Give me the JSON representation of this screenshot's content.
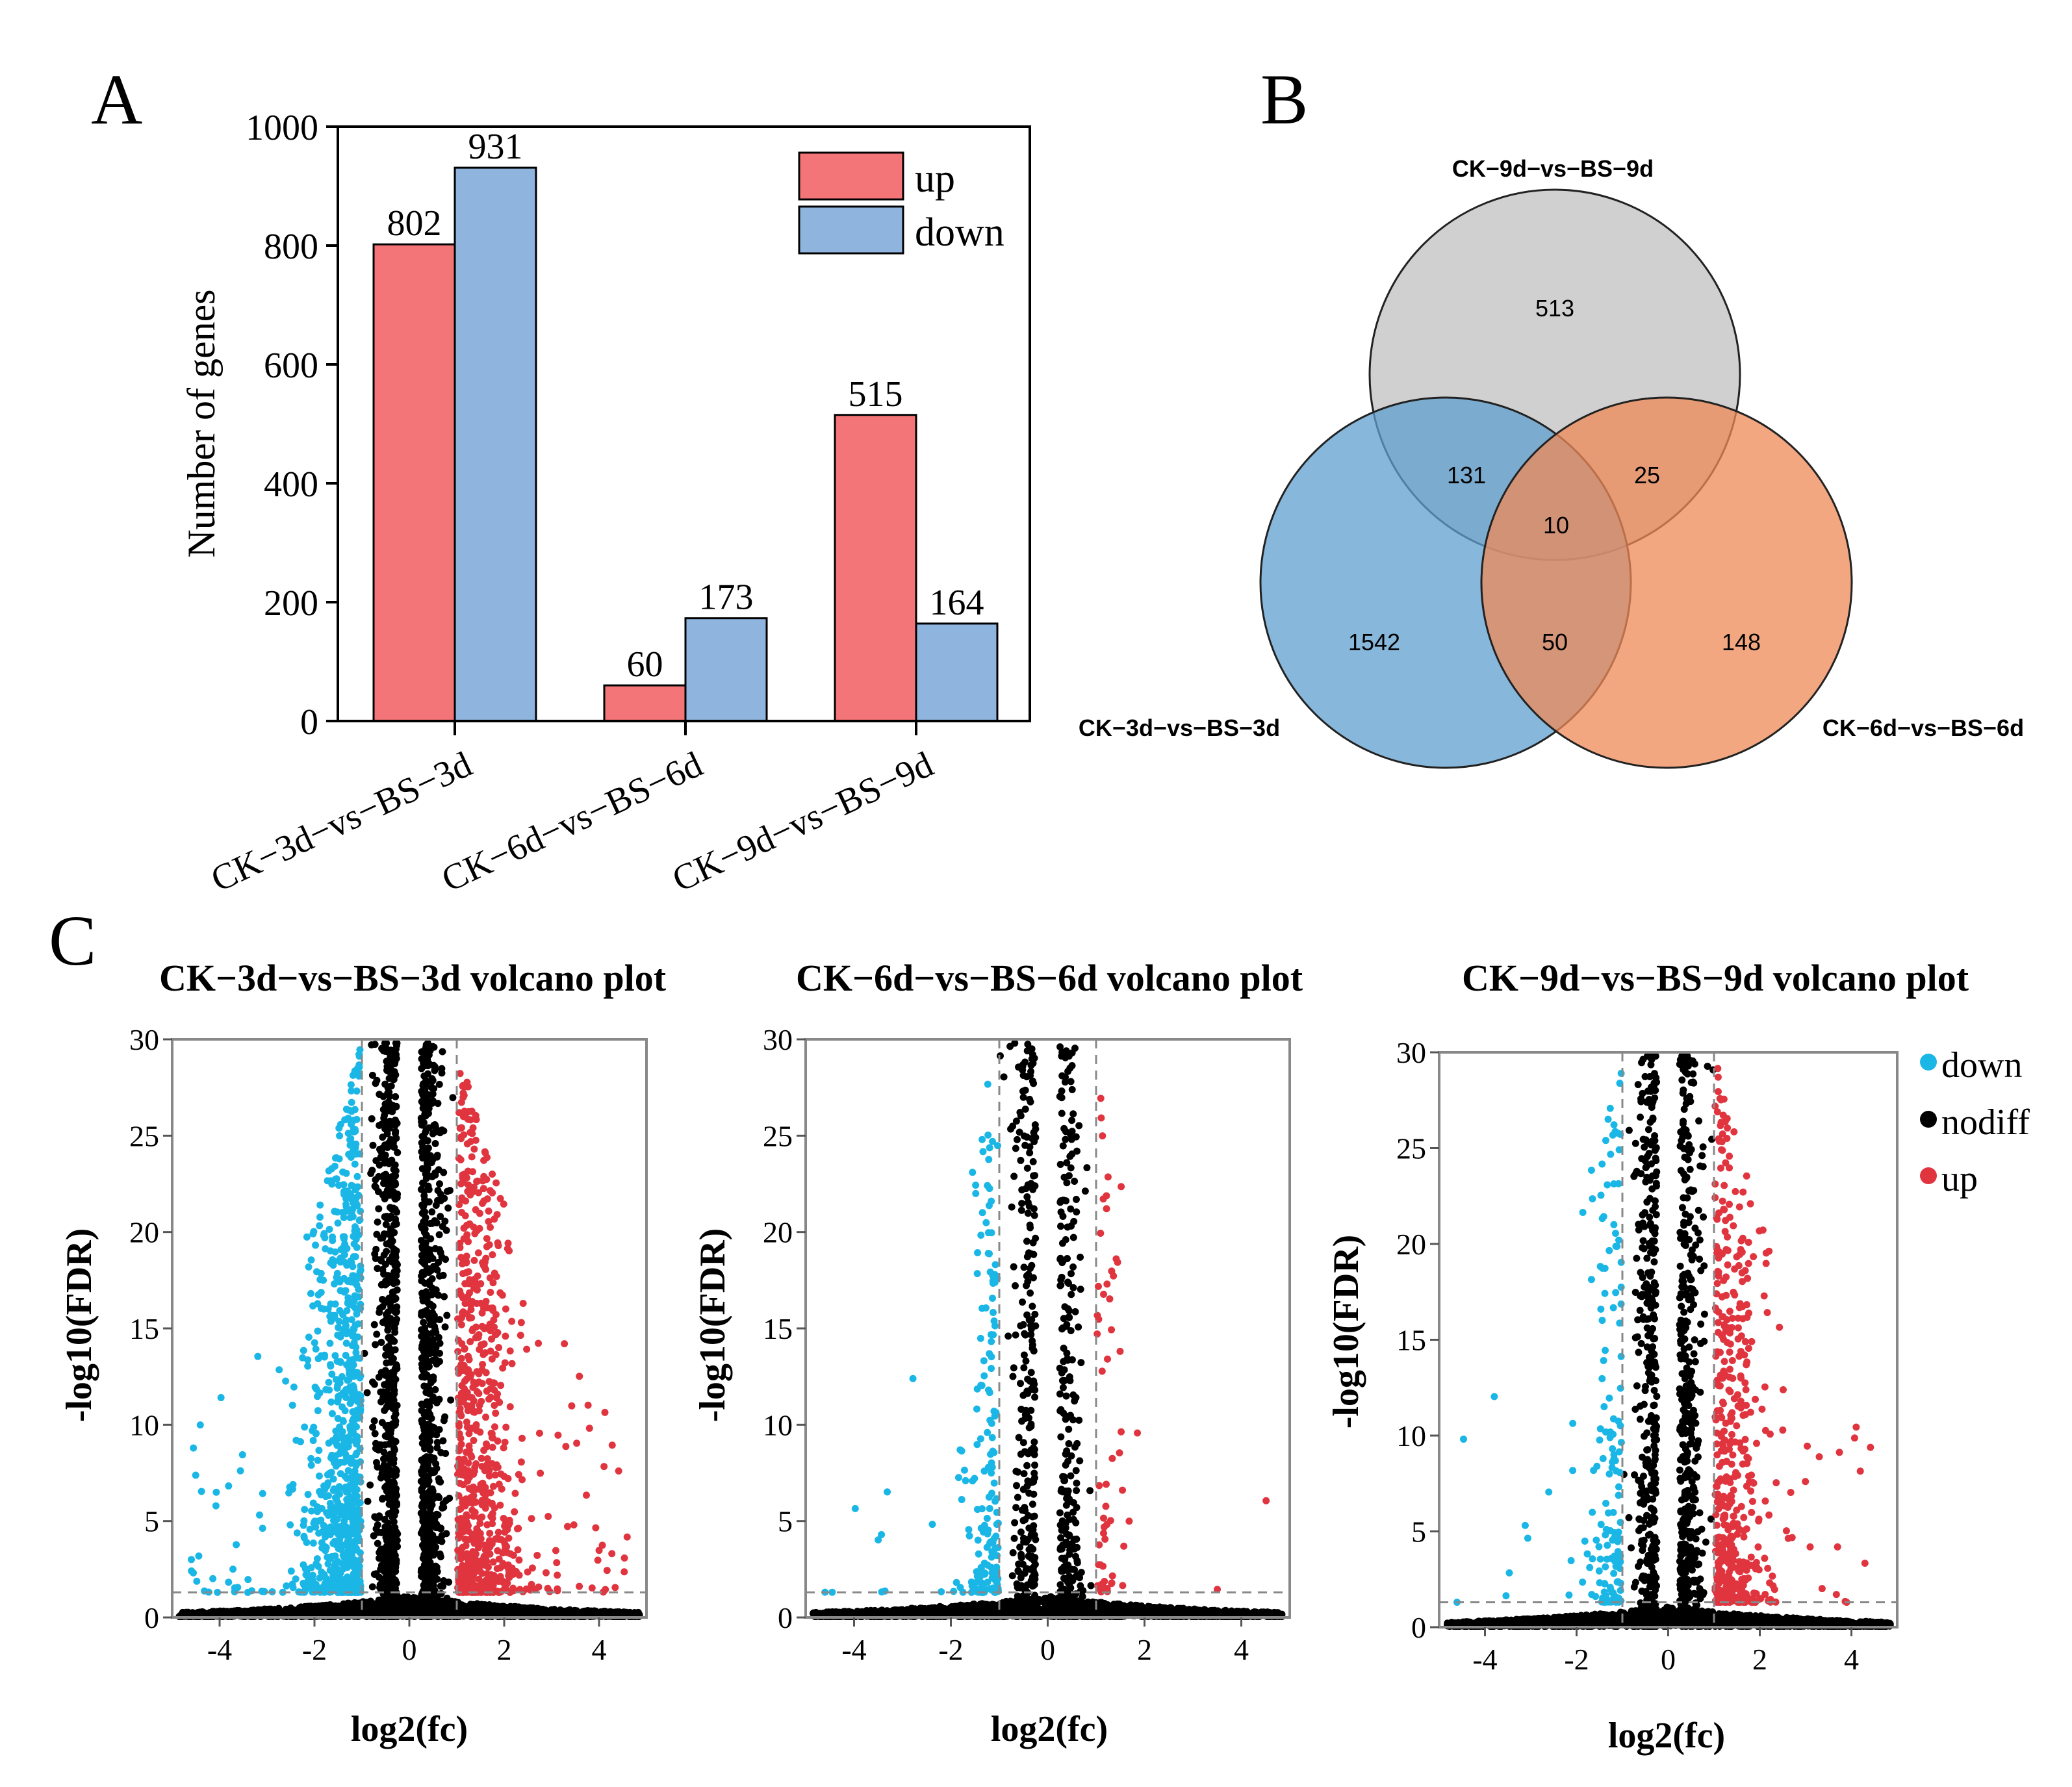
{
  "panel_labels": {
    "a": "A",
    "b": "B",
    "c": "C"
  },
  "colors": {
    "up": "#f47577",
    "down": "#8fb4dd",
    "axis": "#333333",
    "venn_ck9": "#c0c0c0",
    "venn_ck3": "#5f9fce",
    "venn_ck6": "#ee8a57",
    "volc_down": "#1ab7e6",
    "volc_nodiff": "#000000",
    "volc_up": "#e0343f"
  },
  "chart_data": [
    {
      "id": "bar",
      "type": "bar",
      "title": "",
      "ylabel": "Number of genes",
      "xlabel": "",
      "ylim": [
        0,
        1000
      ],
      "yticks": [
        0,
        200,
        400,
        600,
        800,
        1000
      ],
      "categories": [
        "CK−3d−vs−BS−3d",
        "CK−6d−vs−BS−6d",
        "CK−9d−vs−BS−9d"
      ],
      "series": [
        {
          "name": "up",
          "values": [
            802,
            60,
            515
          ]
        },
        {
          "name": "down",
          "values": [
            931,
            173,
            164
          ]
        }
      ],
      "legend": "top-right"
    },
    {
      "id": "venn",
      "type": "venn",
      "sets": [
        "CK−9d−vs−BS−9d",
        "CK−3d−vs−BS−3d",
        "CK−6d−vs−BS−6d"
      ],
      "regions": {
        "ck9_only": "513",
        "ck3_only": "1542",
        "ck6_only": "148",
        "ck9_ck3": "131",
        "ck9_ck6": "25",
        "ck3_ck6": "50",
        "all": "10"
      }
    },
    {
      "id": "volcano1",
      "type": "scatter",
      "title": "CK−3d−vs−BS−3d volcano plot",
      "xlabel": "log2(fc)",
      "ylabel": "-log10(FDR)",
      "xlim": [
        -5,
        5
      ],
      "ylim": [
        0,
        30
      ],
      "xticks": [
        -4,
        -2,
        0,
        2,
        4
      ],
      "yticks": [
        0,
        5,
        10,
        15,
        20,
        25,
        30
      ],
      "fc_threshold": 1,
      "fdr_threshold": 1.3,
      "counts": {
        "up": 802,
        "down": 931
      },
      "tails": {
        "up": 0.55,
        "down": 0.5
      }
    },
    {
      "id": "volcano2",
      "type": "scatter",
      "title": "CK−6d−vs−BS−6d volcano plot",
      "xlabel": "log2(fc)",
      "ylabel": "-log10(FDR)",
      "xlim": [
        -5,
        5
      ],
      "ylim": [
        0,
        30
      ],
      "xticks": [
        -4,
        -2,
        0,
        2,
        4
      ],
      "yticks": [
        0,
        5,
        10,
        15,
        20,
        25,
        30
      ],
      "fc_threshold": 1,
      "fdr_threshold": 1.3,
      "counts": {
        "up": 60,
        "down": 173
      },
      "tails": {
        "up": 0.3,
        "down": 0.3
      }
    },
    {
      "id": "volcano3",
      "type": "scatter",
      "title": "CK−9d−vs−BS−9d volcano plot",
      "xlabel": "log2(fc)",
      "ylabel": "-log10(FDR)",
      "xlim": [
        -5,
        5
      ],
      "ylim": [
        0,
        30
      ],
      "xticks": [
        -4,
        -2,
        0,
        2,
        4
      ],
      "yticks": [
        0,
        5,
        10,
        15,
        20,
        25,
        30
      ],
      "fc_threshold": 1,
      "fdr_threshold": 1.3,
      "counts": {
        "up": 515,
        "down": 164
      },
      "tails": {
        "up": 0.45,
        "down": 0.35
      }
    }
  ],
  "volcano_legend": [
    "down",
    "nodiff",
    "up"
  ]
}
